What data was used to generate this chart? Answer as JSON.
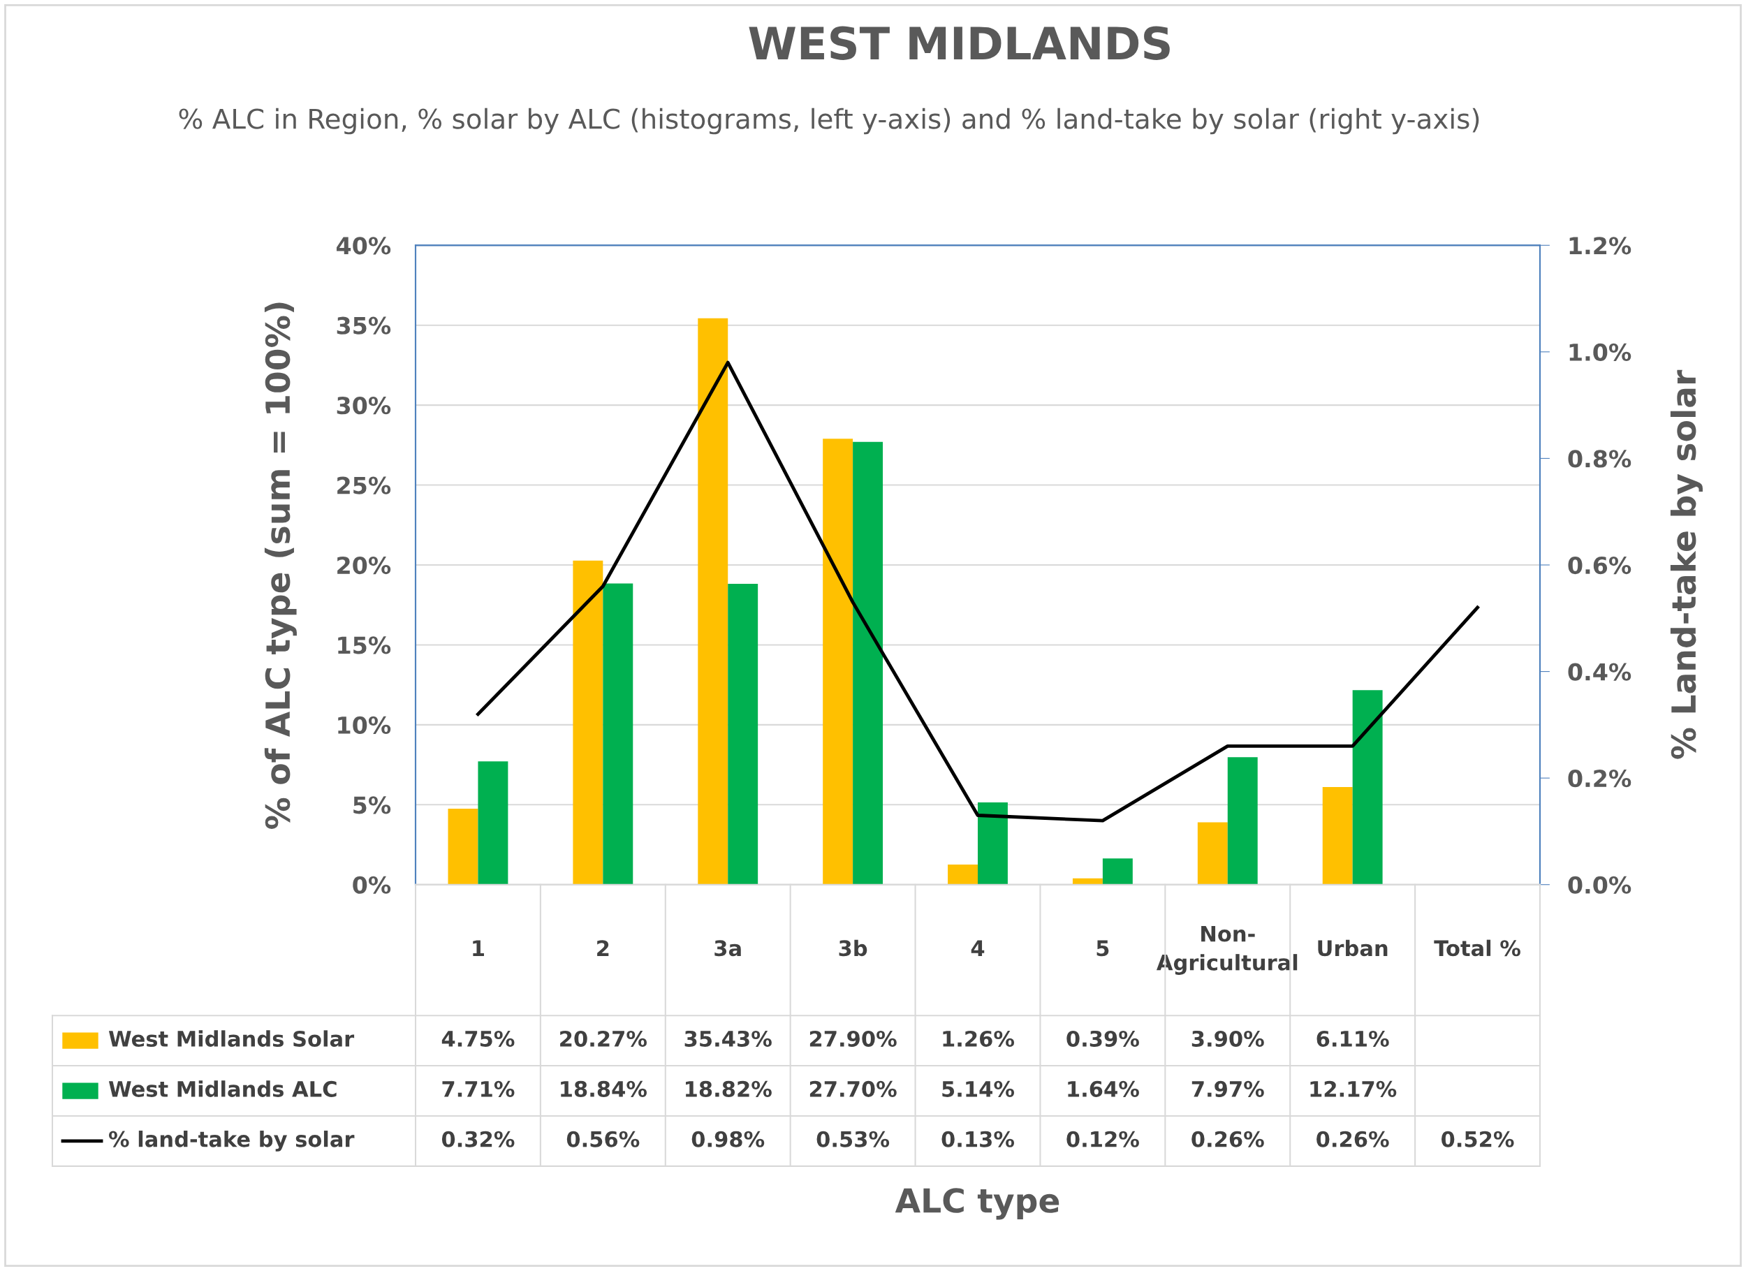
{
  "chart_data": {
    "type": "bar",
    "title": "WEST MIDLANDS",
    "subtitle": "% ALC in Region, % solar by ALC (histograms, left y-axis) and % land-take by solar (right y-axis)",
    "annotations": [
      "ALC type"
    ],
    "ylabel": "% of ALC type (sum = 100%)",
    "y2label": "% Land-take by solar",
    "categories": [
      "1",
      "2",
      "3a",
      "3b",
      "4",
      "5",
      "Non-Agricultural",
      "Urban",
      "Total %"
    ],
    "series": [
      {
        "name": "West Midlands Solar",
        "color": "#ffc000",
        "values": [
          4.75,
          20.27,
          35.43,
          27.9,
          1.26,
          0.39,
          3.9,
          6.11,
          null
        ],
        "value_labels": [
          "4.75%",
          "20.27%",
          "35.43%",
          "27.90%",
          "1.26%",
          "0.39%",
          "3.90%",
          "6.11%",
          null
        ]
      },
      {
        "name": "West Midlands ALC",
        "color": "#00b050",
        "values": [
          7.71,
          18.84,
          18.82,
          27.7,
          5.14,
          1.64,
          7.97,
          12.17,
          null
        ],
        "value_labels": [
          "7.71%",
          "18.84%",
          "18.82%",
          "27.70%",
          "5.14%",
          "1.64%",
          "7.97%",
          "12.17%",
          null
        ]
      },
      {
        "name": "% land-take by solar",
        "type": "line",
        "axis": "y2",
        "color": "#000000",
        "values": [
          0.32,
          0.56,
          0.98,
          0.53,
          0.13,
          0.12,
          0.26,
          0.26,
          0.52
        ],
        "value_labels": [
          "0.32%",
          "0.56%",
          "0.98%",
          "0.53%",
          "0.13%",
          "0.12%",
          "0.26%",
          "0.26%",
          "0.52%"
        ]
      }
    ],
    "ylim": [
      0,
      40
    ],
    "yticks": [
      {
        "value": 0,
        "label": "0%"
      },
      {
        "value": 5,
        "label": "5%"
      },
      {
        "value": 10,
        "label": "10%"
      },
      {
        "value": 15,
        "label": "15%"
      },
      {
        "value": 20,
        "label": "20%"
      },
      {
        "value": 25,
        "label": "25%"
      },
      {
        "value": 30,
        "label": "30%"
      },
      {
        "value": 35,
        "label": "35%"
      },
      {
        "value": 40,
        "label": "40%"
      }
    ],
    "y2lim": [
      0,
      1.2
    ],
    "y2ticks": [
      {
        "value": 0,
        "label": "0.0%"
      },
      {
        "value": 0.2,
        "label": "0.2%"
      },
      {
        "value": 0.4,
        "label": "0.4%"
      },
      {
        "value": 0.6,
        "label": "0.6%"
      },
      {
        "value": 0.8,
        "label": "0.8%"
      },
      {
        "value": 1.0,
        "label": "1.0%"
      },
      {
        "value": 1.2,
        "label": "1.2%"
      }
    ],
    "grid": "y",
    "legend": "bottom",
    "marker": "none",
    "line_style": "solid"
  }
}
